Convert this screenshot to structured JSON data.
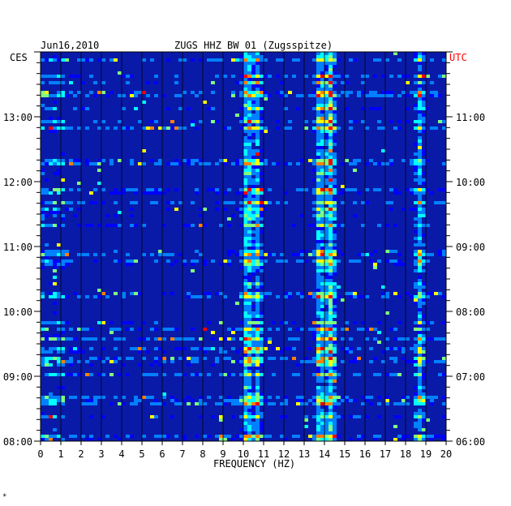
{
  "header": {
    "date": "Jun16,2010",
    "station": "ZUGS HHZ BW 01 (Zugsspitze)",
    "left_zone": "CES",
    "right_zone": "UTC",
    "footnote": "*"
  },
  "colors": {
    "background": "#ffffff",
    "plot_bg": "#0a1aa8",
    "grid": "#000000",
    "local_time_text": "#000000",
    "utc_time_text": "#ff0000"
  },
  "chart_data": {
    "type": "heatmap",
    "title": "ZUGS HHZ BW 01 (Zugsspitze)",
    "xlabel": "FREQUENCY (HZ)",
    "ylabel": "",
    "xlim": [
      0,
      20
    ],
    "x_ticks": [
      "0",
      "1",
      "2",
      "3",
      "4",
      "5",
      "6",
      "7",
      "8",
      "9",
      "10",
      "11",
      "12",
      "13",
      "14",
      "15",
      "16",
      "17",
      "18",
      "19",
      "20"
    ],
    "ylim_local_hours": [
      8,
      14
    ],
    "y_ticks_local": [
      "13:00",
      "12:00",
      "11:00",
      "10:00",
      "09:00",
      "08:00"
    ],
    "y_ticks_utc": [
      "11:00",
      "10:00",
      "09:00",
      "08:00",
      "07:00",
      "06:00"
    ],
    "y_tick_hours": [
      13,
      12,
      11,
      10,
      9,
      8
    ],
    "colormap": [
      "#00008b",
      "#0000ff",
      "#0080ff",
      "#00ffff",
      "#80ff80",
      "#ffff00",
      "#ff8000",
      "#ff0000"
    ],
    "dominant_frequency_bands_hz": [
      {
        "freq": 10.2,
        "level": "high"
      },
      {
        "freq": 10.7,
        "level": "medium"
      },
      {
        "freq": 13.8,
        "level": "high"
      },
      {
        "freq": 14.3,
        "level": "high"
      },
      {
        "freq": 18.7,
        "level": "medium"
      }
    ]
  }
}
